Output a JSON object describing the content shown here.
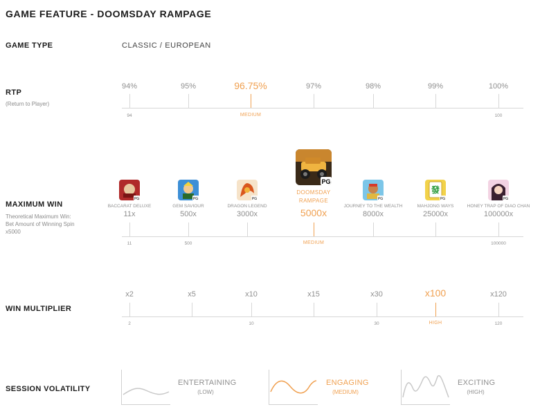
{
  "title": "GAME FEATURE - DOOMSDAY RAMPAGE",
  "game_type": {
    "label": "GAME TYPE",
    "value": "CLASSIC / EUROPEAN"
  },
  "rtp": {
    "label": "RTP",
    "sub": "(Return to Player)",
    "ticks": [
      "94%",
      "95%",
      "96.75%",
      "97%",
      "98%",
      "99%",
      "100%"
    ],
    "highlight_index": 2,
    "scale_min": "94",
    "scale_max": "100",
    "scale_label": "MEDIUM"
  },
  "max_win": {
    "label": "MAXIMUM WIN",
    "sub_line1": "Theoretical Maximum Win:",
    "sub_line2": "Bet Amount of Winning Spin",
    "sub_line3": "x5000",
    "games": [
      {
        "name": "BACCARAT DELUXE",
        "value": "11x",
        "icon": "baccarat-deluxe-icon"
      },
      {
        "name": "GEM SAVIOUR",
        "value": "500x",
        "icon": "gem-saviour-icon"
      },
      {
        "name": "DRAGON LEGEND",
        "value": "3000x",
        "icon": "dragon-legend-icon"
      },
      {
        "name_line1": "DOOMSDAY",
        "name_line2": "RAMPAGE",
        "value": "5000x",
        "icon": "doomsday-rampage-icon"
      },
      {
        "name": "JOURNEY TO THE WEALTH",
        "value": "8000x",
        "icon": "journey-to-the-wealth-icon"
      },
      {
        "name": "MAHJONG WAYS",
        "value": "25000x",
        "icon": "mahjong-ways-icon"
      },
      {
        "name": "HONEY TRAP OF DIAO CHAN",
        "value": "100000x",
        "icon": "honey-trap-of-diao-chan-icon"
      }
    ],
    "badge": "PG",
    "scale_min": "11",
    "scale_mid": "500",
    "scale_max": "100000",
    "scale_label": "MEDIUM"
  },
  "win_multiplier": {
    "label": "WIN MULTIPLIER",
    "ticks": [
      "x2",
      "x5",
      "x10",
      "x15",
      "x30",
      "x100",
      "x120"
    ],
    "highlight_index": 5,
    "scale_values": [
      "2",
      "10",
      "30",
      "120"
    ],
    "scale_label": "HIGH"
  },
  "session_volatility": {
    "label": "SESSION VOLATILITY",
    "options": [
      {
        "name": "ENTERTAINING",
        "level": "(LOW)"
      },
      {
        "name": "ENGAGING",
        "level": "(MEDIUM)"
      },
      {
        "name": "EXCITING",
        "level": "(HIGH)"
      }
    ],
    "highlight_index": 1
  },
  "colors": {
    "accent": "#f0a050",
    "muted": "#8f8f8f",
    "line": "#d7d7d7"
  }
}
